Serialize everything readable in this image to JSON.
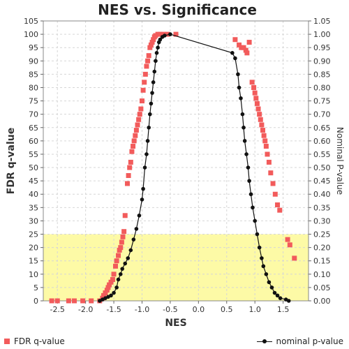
{
  "chart_data": {
    "type": "scatter",
    "title": "NES vs. Significance",
    "xlabel": "NES",
    "ylabel_left": "FDR q-value",
    "ylabel_right": "Nominal P-value",
    "xlim": [
      -2.75,
      1.95
    ],
    "ylim_left": [
      0,
      105
    ],
    "ylim_right": [
      0,
      1.05
    ],
    "x_ticks": [
      -2.5,
      -2.0,
      -1.5,
      -1.0,
      -0.5,
      0.0,
      0.5,
      1.0,
      1.5
    ],
    "x_tick_labels": [
      "-2.5",
      "-2.0",
      "-1.5",
      "-1.0",
      "-0.5",
      "0.0",
      "0.5",
      "1.0",
      "1.5"
    ],
    "y_left_ticks": [
      0,
      5,
      10,
      15,
      20,
      25,
      30,
      35,
      40,
      45,
      50,
      55,
      60,
      65,
      70,
      75,
      80,
      85,
      90,
      95,
      100,
      105
    ],
    "y_left_tick_labels": [
      "0",
      "5",
      "10",
      "15",
      "20",
      "25",
      "30",
      "35",
      "40",
      "45",
      "50",
      "55",
      "60",
      "65",
      "70",
      "75",
      "80",
      "85",
      "90",
      "95",
      "100",
      "105"
    ],
    "y_right_ticks": [
      0,
      0.05,
      0.1,
      0.15,
      0.2,
      0.25,
      0.3,
      0.35,
      0.4,
      0.45,
      0.5,
      0.55,
      0.6,
      0.65,
      0.7,
      0.75,
      0.8,
      0.85,
      0.9,
      0.95,
      1.0,
      1.05
    ],
    "y_right_tick_labels": [
      "0.00",
      "0.05",
      "0.10",
      "0.15",
      "0.20",
      "0.25",
      "0.30",
      "0.35",
      "0.40",
      "0.45",
      "0.50",
      "0.55",
      "0.60",
      "0.65",
      "0.70",
      "0.75",
      "0.80",
      "0.85",
      "0.90",
      "0.95",
      "1.00",
      "1.05"
    ],
    "highlight_band": {
      "y_from": 0,
      "y_to": 25,
      "color": "#fdfaa6"
    },
    "grid": true,
    "legend_position": "bottom",
    "colors": {
      "fdr": "#f25b5b",
      "pvalue": "#111111",
      "band": "#fdfaa6"
    },
    "series": [
      {
        "name": "FDR q-value",
        "axis": "left",
        "style": "square-markers",
        "points": [
          [
            -2.6,
            0
          ],
          [
            -2.5,
            0
          ],
          [
            -2.3,
            0
          ],
          [
            -2.2,
            0
          ],
          [
            -2.05,
            0
          ],
          [
            -1.9,
            0
          ],
          [
            -1.75,
            0
          ],
          [
            -1.7,
            1
          ],
          [
            -1.68,
            2
          ],
          [
            -1.65,
            3
          ],
          [
            -1.62,
            4
          ],
          [
            -1.6,
            5
          ],
          [
            -1.58,
            6
          ],
          [
            -1.55,
            7
          ],
          [
            -1.52,
            8
          ],
          [
            -1.5,
            10
          ],
          [
            -1.47,
            13
          ],
          [
            -1.45,
            15
          ],
          [
            -1.42,
            17
          ],
          [
            -1.4,
            19
          ],
          [
            -1.38,
            20
          ],
          [
            -1.36,
            22
          ],
          [
            -1.34,
            24
          ],
          [
            -1.32,
            26
          ],
          [
            -1.3,
            32
          ],
          [
            -1.26,
            44
          ],
          [
            -1.24,
            47
          ],
          [
            -1.22,
            50
          ],
          [
            -1.2,
            52
          ],
          [
            -1.18,
            56
          ],
          [
            -1.16,
            58
          ],
          [
            -1.14,
            60
          ],
          [
            -1.12,
            62
          ],
          [
            -1.1,
            64
          ],
          [
            -1.08,
            66
          ],
          [
            -1.06,
            68
          ],
          [
            -1.04,
            70
          ],
          [
            -1.02,
            72
          ],
          [
            -1.0,
            75
          ],
          [
            -0.98,
            79
          ],
          [
            -0.96,
            82
          ],
          [
            -0.94,
            85
          ],
          [
            -0.92,
            88
          ],
          [
            -0.9,
            90
          ],
          [
            -0.88,
            92
          ],
          [
            -0.86,
            95
          ],
          [
            -0.84,
            96
          ],
          [
            -0.82,
            97
          ],
          [
            -0.8,
            98
          ],
          [
            -0.78,
            99
          ],
          [
            -0.76,
            99.5
          ],
          [
            -0.72,
            100
          ],
          [
            -0.68,
            100
          ],
          [
            -0.62,
            100
          ],
          [
            -0.55,
            100
          ],
          [
            -0.4,
            100
          ],
          [
            0.65,
            98
          ],
          [
            0.72,
            96
          ],
          [
            0.76,
            95
          ],
          [
            0.8,
            95
          ],
          [
            0.84,
            94
          ],
          [
            0.86,
            93
          ],
          [
            0.9,
            97
          ],
          [
            0.95,
            82
          ],
          [
            0.98,
            80
          ],
          [
            1.0,
            78
          ],
          [
            1.02,
            76
          ],
          [
            1.04,
            74
          ],
          [
            1.06,
            72
          ],
          [
            1.08,
            70
          ],
          [
            1.1,
            68
          ],
          [
            1.12,
            66
          ],
          [
            1.14,
            64
          ],
          [
            1.16,
            62
          ],
          [
            1.18,
            60
          ],
          [
            1.2,
            58
          ],
          [
            1.22,
            55
          ],
          [
            1.25,
            52
          ],
          [
            1.28,
            48
          ],
          [
            1.32,
            44
          ],
          [
            1.36,
            40
          ],
          [
            1.4,
            36
          ],
          [
            1.44,
            34
          ],
          [
            1.58,
            23
          ],
          [
            1.62,
            21
          ],
          [
            1.7,
            16
          ]
        ]
      },
      {
        "name": "nominal p-value",
        "axis": "right",
        "style": "line-with-dots",
        "points": [
          [
            -1.75,
            0
          ],
          [
            -1.7,
            0.005
          ],
          [
            -1.65,
            0.01
          ],
          [
            -1.6,
            0.015
          ],
          [
            -1.55,
            0.02
          ],
          [
            -1.5,
            0.03
          ],
          [
            -1.45,
            0.05
          ],
          [
            -1.42,
            0.08
          ],
          [
            -1.38,
            0.1
          ],
          [
            -1.35,
            0.12
          ],
          [
            -1.3,
            0.14
          ],
          [
            -1.25,
            0.16
          ],
          [
            -1.2,
            0.19
          ],
          [
            -1.15,
            0.23
          ],
          [
            -1.1,
            0.27
          ],
          [
            -1.05,
            0.32
          ],
          [
            -1.0,
            0.38
          ],
          [
            -0.98,
            0.42
          ],
          [
            -0.95,
            0.5
          ],
          [
            -0.92,
            0.55
          ],
          [
            -0.9,
            0.6
          ],
          [
            -0.88,
            0.65
          ],
          [
            -0.86,
            0.7
          ],
          [
            -0.84,
            0.74
          ],
          [
            -0.82,
            0.78
          ],
          [
            -0.8,
            0.82
          ],
          [
            -0.78,
            0.86
          ],
          [
            -0.76,
            0.9
          ],
          [
            -0.74,
            0.93
          ],
          [
            -0.72,
            0.95
          ],
          [
            -0.7,
            0.97
          ],
          [
            -0.68,
            0.98
          ],
          [
            -0.64,
            0.99
          ],
          [
            -0.6,
            0.995
          ],
          [
            -0.5,
            1.0
          ],
          [
            0.6,
            0.93
          ],
          [
            0.65,
            0.91
          ],
          [
            0.7,
            0.85
          ],
          [
            0.72,
            0.8
          ],
          [
            0.75,
            0.76
          ],
          [
            0.78,
            0.7
          ],
          [
            0.8,
            0.65
          ],
          [
            0.82,
            0.6
          ],
          [
            0.85,
            0.55
          ],
          [
            0.88,
            0.5
          ],
          [
            0.9,
            0.45
          ],
          [
            0.93,
            0.4
          ],
          [
            0.96,
            0.35
          ],
          [
            1.0,
            0.3
          ],
          [
            1.04,
            0.25
          ],
          [
            1.08,
            0.2
          ],
          [
            1.12,
            0.16
          ],
          [
            1.15,
            0.13
          ],
          [
            1.2,
            0.1
          ],
          [
            1.25,
            0.07
          ],
          [
            1.3,
            0.05
          ],
          [
            1.35,
            0.03
          ],
          [
            1.4,
            0.02
          ],
          [
            1.45,
            0.01
          ],
          [
            1.55,
            0.005
          ],
          [
            1.6,
            0
          ]
        ]
      }
    ]
  },
  "legend": {
    "fdr_label": "FDR q-value",
    "p_label": "nominal p-value"
  }
}
